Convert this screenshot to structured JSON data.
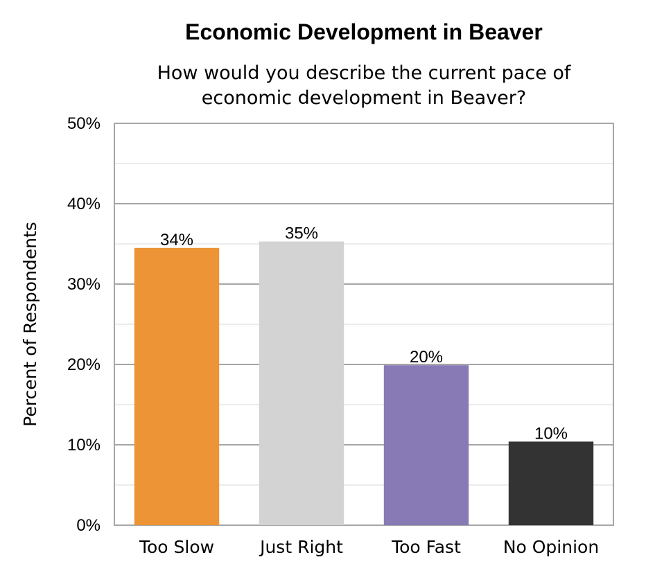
{
  "chart_data": {
    "type": "bar",
    "title": "Economic Development in Beaver",
    "subtitle_lines": [
      "How would you describe the current pace of",
      "economic development in Beaver?"
    ],
    "ylabel": "Percent of Respondents",
    "xlabel": "",
    "categories": [
      "Too Slow",
      "Just Right",
      "Too Fast",
      "No Opinion"
    ],
    "values": [
      34.5,
      35.3,
      19.9,
      10.4
    ],
    "value_labels": [
      "34%",
      "35%",
      "20%",
      "10%"
    ],
    "colors": [
      "#ec9436",
      "#d3d3d3",
      "#877ab5",
      "#333333"
    ],
    "ylim": [
      0,
      50
    ],
    "y_ticks": [
      0,
      10,
      20,
      30,
      40,
      50
    ],
    "y_tick_labels": [
      "0%",
      "10%",
      "20%",
      "30%",
      "40%",
      "50%"
    ],
    "grid": true,
    "legend": "none"
  }
}
